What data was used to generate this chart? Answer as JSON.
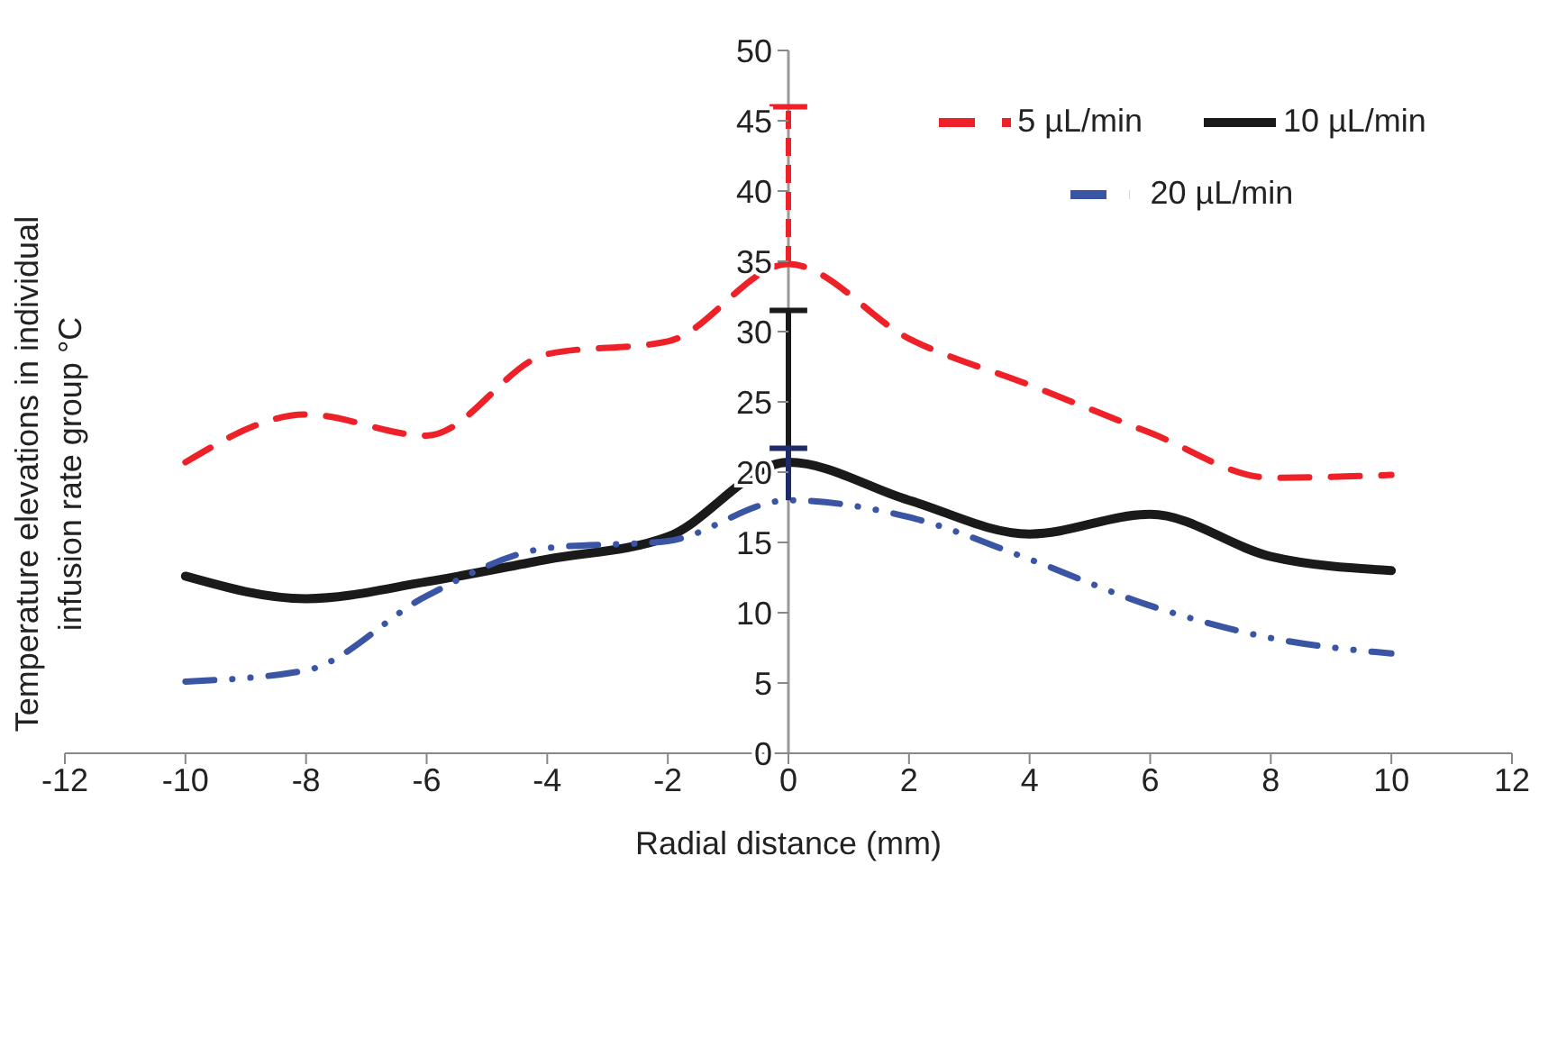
{
  "chart_data": {
    "type": "line",
    "xlabel": "Radial distance (mm)",
    "ylabel": "Temperature elevations in individual infusion rate group °C",
    "x": [
      -10,
      -8,
      -6,
      -4,
      -2,
      0,
      2,
      4,
      6,
      8,
      10
    ],
    "series": [
      {
        "name": "5 µL/min",
        "color": "#ee2028",
        "line_style": "dashed",
        "values": [
          20.7,
          24.1,
          22.6,
          28.4,
          29.3,
          34.8,
          29.5,
          26.2,
          22.8,
          19.6,
          19.8
        ],
        "errors": [
          null,
          null,
          null,
          null,
          null,
          [
            34.8,
            46
          ],
          null,
          null,
          null,
          null,
          null
        ]
      },
      {
        "name": "10 µL/min",
        "color": "#1a1a1a",
        "line_style": "solid",
        "values": [
          12.6,
          11.0,
          12.2,
          13.8,
          15.4,
          20.7,
          18.0,
          15.6,
          17.0,
          14.0,
          13.0
        ],
        "errors": [
          null,
          null,
          null,
          null,
          null,
          [
            20.7,
            31.5
          ],
          null,
          null,
          null,
          null,
          null
        ]
      },
      {
        "name": "20 µL/min",
        "color": "#3a55a4",
        "line_style": "dashdot",
        "values": [
          5.1,
          5.9,
          11.2,
          14.6,
          15.1,
          18.0,
          16.8,
          13.8,
          10.5,
          8.2,
          7.1
        ],
        "errors": [
          null,
          null,
          null,
          null,
          null,
          [
            18.0,
            21.7
          ],
          null,
          null,
          null,
          null,
          null
        ]
      }
    ],
    "xlim": [
      -12,
      12
    ],
    "xticks": [
      -12,
      -10,
      -8,
      -6,
      -4,
      -2,
      0,
      2,
      4,
      6,
      8,
      10,
      12
    ],
    "ylim": [
      0,
      50
    ],
    "yticks": [
      0,
      5,
      10,
      15,
      20,
      25,
      30,
      35,
      40,
      45,
      50
    ],
    "legend": "top right",
    "grid": false,
    "marker": "none"
  }
}
